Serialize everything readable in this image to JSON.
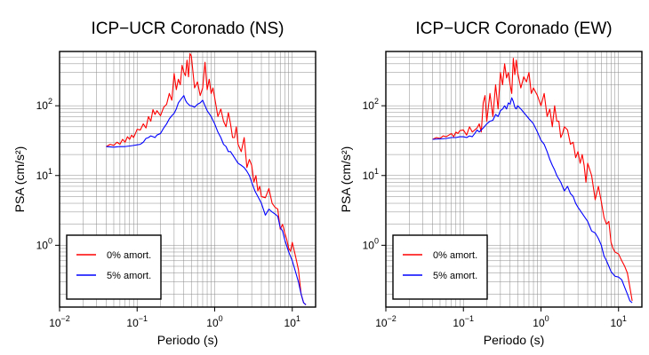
{
  "chart_data": [
    {
      "type": "line",
      "title": "ICP−UCR Coronado (NS)",
      "xlabel": "Periodo (s)",
      "ylabel": "PSA (cm/s²)",
      "xscale": "log",
      "yscale": "log",
      "xlim": [
        0.01,
        20
      ],
      "ylim": [
        0.13,
        600
      ],
      "grid": true,
      "legend_position": "bottom-left",
      "x_ticks": [
        {
          "value": 0.01,
          "base": "10",
          "exp": "−2"
        },
        {
          "value": 0.1,
          "base": "10",
          "exp": "−1"
        },
        {
          "value": 1,
          "base": "10",
          "exp": "0"
        },
        {
          "value": 10,
          "base": "10",
          "exp": "1"
        }
      ],
      "y_ticks": [
        {
          "value": 1,
          "base": "10",
          "exp": "0"
        },
        {
          "value": 10,
          "base": "10",
          "exp": "1"
        },
        {
          "value": 100,
          "base": "10",
          "exp": "2"
        }
      ],
      "series": [
        {
          "name": "0% amort.",
          "color": "#ff0000",
          "x": [
            0.04,
            0.045,
            0.05,
            0.055,
            0.06,
            0.065,
            0.07,
            0.075,
            0.08,
            0.085,
            0.09,
            0.095,
            0.1,
            0.11,
            0.12,
            0.13,
            0.14,
            0.15,
            0.16,
            0.17,
            0.18,
            0.2,
            0.22,
            0.24,
            0.26,
            0.28,
            0.3,
            0.32,
            0.34,
            0.36,
            0.38,
            0.4,
            0.42,
            0.44,
            0.46,
            0.48,
            0.5,
            0.55,
            0.6,
            0.65,
            0.7,
            0.75,
            0.8,
            0.85,
            0.9,
            0.95,
            1.0,
            1.1,
            1.2,
            1.3,
            1.4,
            1.5,
            1.6,
            1.7,
            1.8,
            1.9,
            2.0,
            2.2,
            2.4,
            2.6,
            2.8,
            3.0,
            3.2,
            3.4,
            3.6,
            3.8,
            4.0,
            4.5,
            5.0,
            5.5,
            6.0,
            6.5,
            7.0,
            7.5,
            8.0,
            8.5,
            9.0,
            9.5,
            10,
            11,
            12,
            13,
            14,
            15
          ],
          "y": [
            26,
            28,
            27,
            30,
            28,
            33,
            30,
            36,
            33,
            38,
            35,
            40,
            46,
            45,
            55,
            48,
            70,
            60,
            88,
            75,
            85,
            72,
            95,
            105,
            150,
            120,
            290,
            170,
            240,
            200,
            380,
            300,
            270,
            450,
            260,
            560,
            520,
            180,
            220,
            140,
            180,
            420,
            170,
            240,
            150,
            180,
            130,
            70,
            90,
            60,
            50,
            80,
            55,
            35,
            35,
            50,
            28,
            22,
            35,
            13,
            17,
            14,
            8,
            10,
            6,
            7,
            5,
            4.8,
            6.5,
            4,
            3.5,
            3.3,
            1.7,
            2.0,
            1.5,
            1.2,
            0.9,
            0.82,
            1.1,
            0.7,
            0.45,
            0.2,
            0.15,
            0.14
          ]
        },
        {
          "name": "5% amort.",
          "color": "#0000ff",
          "x": [
            0.04,
            0.05,
            0.06,
            0.07,
            0.08,
            0.09,
            0.1,
            0.11,
            0.12,
            0.13,
            0.14,
            0.15,
            0.16,
            0.17,
            0.18,
            0.2,
            0.22,
            0.24,
            0.26,
            0.28,
            0.3,
            0.32,
            0.34,
            0.36,
            0.38,
            0.4,
            0.42,
            0.44,
            0.46,
            0.48,
            0.5,
            0.55,
            0.6,
            0.65,
            0.7,
            0.75,
            0.8,
            0.9,
            1.0,
            1.1,
            1.2,
            1.3,
            1.4,
            1.5,
            1.6,
            1.8,
            2.0,
            2.2,
            2.4,
            2.6,
            2.8,
            3.0,
            3.3,
            3.6,
            4.0,
            4.5,
            5.0,
            5.5,
            6.0,
            6.5,
            7.0,
            7.5,
            8.0,
            9.0,
            10,
            11,
            12,
            13,
            14,
            15
          ],
          "y": [
            26,
            25.5,
            26,
            26,
            26.5,
            27,
            27.5,
            28,
            30,
            34,
            35,
            37,
            36,
            35,
            38,
            40,
            48,
            55,
            65,
            72,
            78,
            90,
            110,
            120,
            130,
            140,
            120,
            110,
            105,
            100,
            100,
            95,
            105,
            110,
            120,
            100,
            85,
            70,
            55,
            42,
            35,
            28,
            26,
            22,
            22,
            18,
            15,
            14,
            13,
            11.5,
            10,
            8,
            6,
            5,
            4,
            2.7,
            3.3,
            3.0,
            2.8,
            2.6,
            1.8,
            1.6,
            1.2,
            0.8,
            0.6,
            0.42,
            0.3,
            0.2,
            0.15,
            0.14
          ]
        }
      ]
    },
    {
      "type": "line",
      "title": "ICP−UCR Coronado (EW)",
      "xlabel": "Periodo (s)",
      "ylabel": "PSA (cm/s²)",
      "xscale": "log",
      "yscale": "log",
      "xlim": [
        0.01,
        20
      ],
      "ylim": [
        0.13,
        600
      ],
      "grid": true,
      "legend_position": "bottom-left",
      "x_ticks": [
        {
          "value": 0.01,
          "base": "10",
          "exp": "−2"
        },
        {
          "value": 0.1,
          "base": "10",
          "exp": "−1"
        },
        {
          "value": 1,
          "base": "10",
          "exp": "0"
        },
        {
          "value": 10,
          "base": "10",
          "exp": "1"
        }
      ],
      "y_ticks": [
        {
          "value": 1,
          "base": "10",
          "exp": "0"
        },
        {
          "value": 10,
          "base": "10",
          "exp": "1"
        },
        {
          "value": 100,
          "base": "10",
          "exp": "2"
        }
      ],
      "series": [
        {
          "name": "0% amort.",
          "color": "#ff0000",
          "x": [
            0.04,
            0.045,
            0.05,
            0.055,
            0.06,
            0.065,
            0.07,
            0.075,
            0.08,
            0.085,
            0.09,
            0.1,
            0.11,
            0.12,
            0.13,
            0.14,
            0.15,
            0.16,
            0.17,
            0.18,
            0.19,
            0.2,
            0.22,
            0.24,
            0.26,
            0.28,
            0.3,
            0.32,
            0.34,
            0.36,
            0.38,
            0.4,
            0.42,
            0.44,
            0.46,
            0.48,
            0.5,
            0.55,
            0.6,
            0.65,
            0.7,
            0.75,
            0.8,
            0.9,
            1.0,
            1.1,
            1.2,
            1.3,
            1.4,
            1.5,
            1.6,
            1.7,
            1.8,
            1.9,
            2.0,
            2.2,
            2.4,
            2.6,
            2.8,
            3.0,
            3.2,
            3.4,
            3.6,
            3.8,
            4.0,
            4.5,
            5.0,
            5.5,
            6.0,
            6.5,
            7.0,
            7.5,
            8.0,
            8.5,
            9.0,
            10,
            11,
            12,
            13,
            14,
            15
          ],
          "y": [
            33,
            35,
            34,
            37,
            36,
            38,
            40,
            36,
            42,
            40,
            44,
            45,
            38,
            50,
            42,
            45,
            48,
            55,
            42,
            110,
            140,
            60,
            150,
            70,
            200,
            90,
            300,
            200,
            400,
            250,
            300,
            200,
            150,
            480,
            280,
            450,
            300,
            180,
            260,
            220,
            300,
            150,
            180,
            140,
            100,
            150,
            70,
            90,
            50,
            100,
            60,
            60,
            35,
            40,
            50,
            45,
            28,
            30,
            18,
            22,
            15,
            20,
            14,
            8,
            15,
            10,
            4.5,
            7,
            4.2,
            2.5,
            2.0,
            2.2,
            1.1,
            0.9,
            0.8,
            0.75,
            0.6,
            0.5,
            0.4,
            0.25,
            0.16
          ]
        },
        {
          "name": "5% amort.",
          "color": "#0000ff",
          "x": [
            0.04,
            0.05,
            0.06,
            0.07,
            0.08,
            0.09,
            0.1,
            0.11,
            0.12,
            0.13,
            0.14,
            0.15,
            0.16,
            0.17,
            0.18,
            0.2,
            0.22,
            0.24,
            0.26,
            0.28,
            0.3,
            0.32,
            0.34,
            0.36,
            0.38,
            0.4,
            0.42,
            0.44,
            0.46,
            0.48,
            0.5,
            0.55,
            0.6,
            0.65,
            0.7,
            0.75,
            0.8,
            0.9,
            1.0,
            1.1,
            1.2,
            1.3,
            1.4,
            1.5,
            1.6,
            1.8,
            2.0,
            2.2,
            2.4,
            2.6,
            2.8,
            3.0,
            3.3,
            3.6,
            4.0,
            4.5,
            5.0,
            5.5,
            6.0,
            6.5,
            7.0,
            7.5,
            8.0,
            9.0,
            10,
            11,
            12,
            13,
            14,
            15
          ],
          "y": [
            33,
            33.5,
            34,
            35,
            35,
            36,
            36,
            35,
            37,
            36,
            40,
            45,
            42,
            45,
            48,
            55,
            60,
            62,
            75,
            70,
            85,
            90,
            100,
            90,
            110,
            105,
            130,
            115,
            95,
            90,
            100,
            90,
            80,
            72,
            65,
            60,
            55,
            42,
            32,
            28,
            22,
            17,
            14,
            12,
            10,
            8,
            6,
            7,
            5.5,
            5,
            4,
            3.5,
            3,
            2.6,
            2.2,
            1.6,
            1.5,
            1.25,
            1.0,
            0.7,
            0.6,
            0.5,
            0.42,
            0.36,
            0.35,
            0.32,
            0.25,
            0.2,
            0.16,
            0.15
          ]
        }
      ]
    }
  ]
}
